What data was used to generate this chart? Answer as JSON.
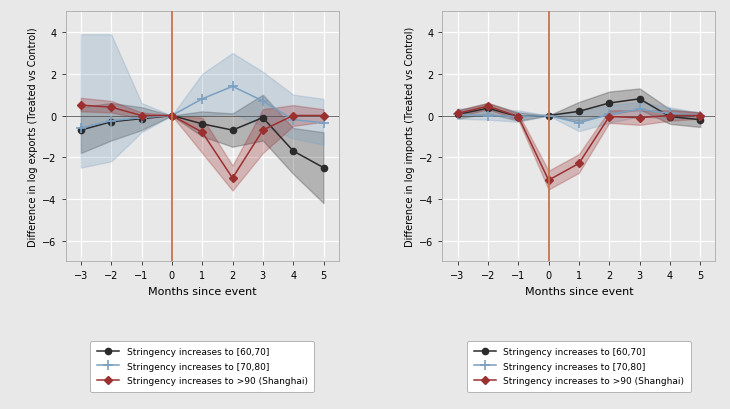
{
  "months": [
    -3,
    -2,
    -1,
    0,
    1,
    2,
    3,
    4,
    5
  ],
  "exports": {
    "black": {
      "mean": [
        -0.7,
        -0.3,
        -0.15,
        0.0,
        -0.4,
        -0.7,
        -0.1,
        -1.7,
        -2.5
      ],
      "lower": [
        -1.8,
        -1.2,
        -0.7,
        0.0,
        -1.0,
        -1.5,
        -1.2,
        -2.8,
        -4.2
      ],
      "upper": [
        0.4,
        0.6,
        0.4,
        0.0,
        0.2,
        0.1,
        1.0,
        -0.6,
        -0.8
      ]
    },
    "blue": {
      "mean": [
        -0.6,
        -0.25,
        -0.1,
        0.0,
        0.8,
        1.4,
        0.7,
        -0.2,
        -0.35
      ],
      "lower": [
        -2.5,
        -2.2,
        -0.8,
        0.0,
        0.0,
        0.1,
        -0.5,
        -1.1,
        -1.4
      ],
      "upper": [
        3.9,
        3.9,
        0.6,
        0.0,
        2.0,
        3.0,
        2.1,
        1.0,
        0.8
      ]
    },
    "red": {
      "mean": [
        0.5,
        0.4,
        0.0,
        0.0,
        -0.8,
        -3.0,
        -0.7,
        0.0,
        0.0
      ],
      "lower": [
        0.2,
        0.15,
        -0.15,
        0.0,
        -1.8,
        -3.6,
        -1.8,
        -0.5,
        -0.3
      ],
      "upper": [
        0.85,
        0.7,
        0.15,
        0.0,
        -0.1,
        -2.4,
        0.3,
        0.5,
        0.3
      ]
    }
  },
  "imports": {
    "black": {
      "mean": [
        0.05,
        0.35,
        -0.05,
        0.0,
        0.2,
        0.6,
        0.8,
        -0.05,
        -0.2
      ],
      "lower": [
        -0.15,
        0.1,
        -0.25,
        0.0,
        -0.25,
        0.05,
        0.3,
        -0.4,
        -0.55
      ],
      "upper": [
        0.25,
        0.6,
        0.15,
        0.0,
        0.65,
        1.15,
        1.3,
        0.3,
        0.15
      ]
    },
    "blue": {
      "mean": [
        0.05,
        0.0,
        -0.05,
        0.0,
        -0.35,
        0.05,
        0.3,
        0.1,
        0.0
      ],
      "lower": [
        -0.15,
        -0.2,
        -0.3,
        0.0,
        -0.75,
        -0.35,
        -0.05,
        -0.15,
        -0.12
      ],
      "upper": [
        0.35,
        0.25,
        0.25,
        0.0,
        0.2,
        0.5,
        0.65,
        0.4,
        0.12
      ]
    },
    "red": {
      "mean": [
        0.1,
        0.45,
        -0.05,
        -3.1,
        -2.3,
        -0.05,
        -0.1,
        0.0,
        0.0
      ],
      "lower": [
        -0.05,
        0.3,
        -0.2,
        -3.55,
        -2.75,
        -0.35,
        -0.45,
        -0.25,
        -0.15
      ],
      "upper": [
        0.25,
        0.6,
        0.1,
        -2.65,
        -1.85,
        0.25,
        0.25,
        0.25,
        0.15
      ]
    }
  },
  "colors": {
    "black": "#2b2b2b",
    "blue": "#7a9fc0",
    "red": "#9b3030",
    "vline": "#c8714a"
  },
  "ylabel_left": "Difference in log exports (Treated vs Control)",
  "ylabel_right": "Difference in log imports (Treated vs Control)",
  "xlabel": "Months since event",
  "ylim": [
    -7,
    5
  ],
  "yticks": [
    -6,
    -4,
    -2,
    0,
    2,
    4
  ],
  "xticks": [
    -3,
    -2,
    -1,
    0,
    1,
    2,
    3,
    4,
    5
  ],
  "legend_labels": [
    "Stringency increases to [60,70]",
    "Stringency increases to [70,80]",
    "Stringency increases to >90 (Shanghai)"
  ],
  "fig_bg": "#e8e8e8",
  "plot_bg": "#e8e8e8"
}
